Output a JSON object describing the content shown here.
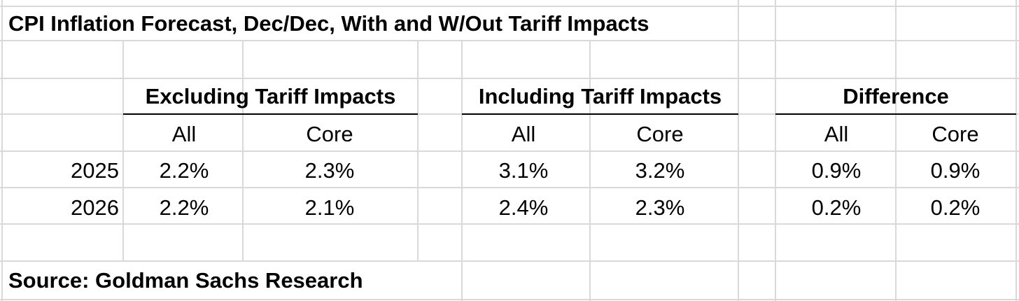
{
  "chart_data": {
    "type": "table",
    "title": "CPI Inflation Forecast, Dec/Dec, With and W/Out Tariff Impacts",
    "groups": [
      {
        "label": "Excluding Tariff Impacts",
        "columns": [
          "All",
          "Core"
        ]
      },
      {
        "label": "Including Tariff Impacts",
        "columns": [
          "All",
          "Core"
        ]
      },
      {
        "label": "Difference",
        "columns": [
          "All",
          "Core"
        ]
      }
    ],
    "rows": [
      {
        "year": "2025",
        "values": [
          "2.2%",
          "2.3%",
          "3.1%",
          "3.2%",
          "0.9%",
          "0.9%"
        ]
      },
      {
        "year": "2026",
        "values": [
          "2.2%",
          "2.1%",
          "2.4%",
          "2.3%",
          "0.2%",
          "0.2%"
        ]
      }
    ],
    "source": "Source: Goldman Sachs Research",
    "grid": true
  },
  "colors": {
    "gridline": "#d9d9d9",
    "text": "#000000",
    "rule": "#000000"
  }
}
